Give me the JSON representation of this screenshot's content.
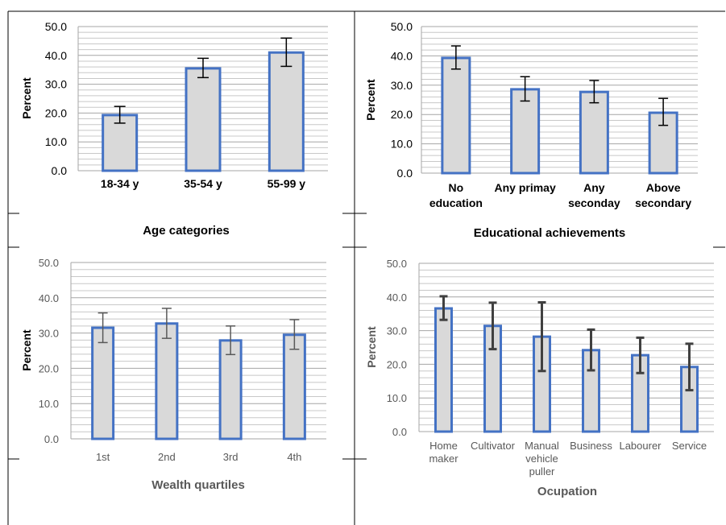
{
  "chart_data": [
    {
      "type": "bar",
      "xlabel": "Age categories",
      "ylabel": "Percent",
      "ylim": [
        0,
        50
      ],
      "ytick_labels": [
        "0.0",
        "10.0",
        "20.0",
        "30.0",
        "40.0",
        "50.0"
      ],
      "categories": [
        [
          "18-34 y"
        ],
        [
          "35-54 y"
        ],
        [
          "55-99 y"
        ]
      ],
      "values": [
        19.3,
        35.5,
        41.0
      ],
      "error_low": [
        16.5,
        32.3,
        36.2
      ],
      "error_high": [
        22.3,
        39.0,
        46.0
      ],
      "grid": true
    },
    {
      "type": "bar",
      "xlabel": "Educational achievements",
      "ylabel": "Percent",
      "ylim": [
        0,
        50
      ],
      "ytick_labels": [
        "0.0",
        "10.0",
        "20.0",
        "30.0",
        "40.0",
        "50.0"
      ],
      "categories": [
        [
          "No",
          "education"
        ],
        [
          "Any primay"
        ],
        [
          "Any",
          "seconday"
        ],
        [
          "Above",
          "secondary"
        ]
      ],
      "values": [
        39.3,
        28.6,
        27.7,
        20.6
      ],
      "error_low": [
        35.5,
        24.6,
        24.0,
        16.3
      ],
      "error_high": [
        43.4,
        32.9,
        31.6,
        25.5
      ],
      "grid": true
    },
    {
      "type": "bar",
      "xlabel": "Wealth quartiles",
      "ylabel": "Percent",
      "ylim": [
        0,
        50
      ],
      "ytick_labels": [
        "0.0",
        "10.0",
        "20.0",
        "30.0",
        "40.0",
        "50.0"
      ],
      "categories": [
        [
          "1st"
        ],
        [
          "2nd"
        ],
        [
          "3rd"
        ],
        [
          "4th"
        ]
      ],
      "values": [
        31.5,
        32.7,
        27.9,
        29.5
      ],
      "error_low": [
        27.3,
        28.5,
        23.9,
        25.4
      ],
      "error_high": [
        35.7,
        37.0,
        32.0,
        33.8
      ],
      "grid": true
    },
    {
      "type": "bar",
      "xlabel": "Ocupation",
      "ylabel": "Percent",
      "ylim": [
        0,
        50
      ],
      "ytick_labels": [
        "0.0",
        "10.0",
        "20.0",
        "30.0",
        "40.0",
        "50.0"
      ],
      "categories": [
        [
          "Home",
          "maker"
        ],
        [
          "Cultivator"
        ],
        [
          "Manual",
          "vehicle",
          "puller"
        ],
        [
          "Business"
        ],
        [
          "Labourer"
        ],
        [
          "Service"
        ]
      ],
      "values": [
        36.6,
        31.4,
        28.2,
        24.2,
        22.7,
        19.2
      ],
      "error_low": [
        33.2,
        24.5,
        18.0,
        18.2,
        17.4,
        12.3
      ],
      "error_high": [
        40.2,
        38.3,
        38.4,
        30.3,
        27.9,
        26.1
      ],
      "grid": true
    }
  ]
}
